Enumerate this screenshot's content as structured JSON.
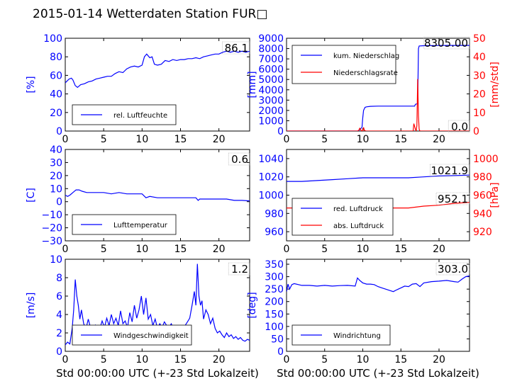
{
  "figure": {
    "title": "2015-01-14 Wetterdaten Station FUR□",
    "xlabel": "Std 00:00:00 UTC (+-23 Std Lokalzeit)",
    "colors": {
      "primary": "#0000ff",
      "secondary": "#ff0000",
      "secondary_light": "#8080ff"
    }
  },
  "chart_data": [
    {
      "id": "humidity",
      "type": "line",
      "ylabel": "[%]",
      "xlim": [
        0,
        24
      ],
      "ylim": [
        0,
        100
      ],
      "xticks": [
        0,
        5,
        10,
        15,
        20
      ],
      "yticks": [
        0,
        20,
        40,
        60,
        80,
        100
      ],
      "legend": {
        "placement": "lower-left",
        "entries": [
          "rel. Luftfeuchte"
        ]
      },
      "current_value": "86.1",
      "series": [
        {
          "name": "rel. Luftfeuchte",
          "color": "#0000ff",
          "x": [
            0,
            0.5,
            0.8,
            1,
            1.3,
            1.6,
            2,
            2.5,
            3,
            3.5,
            4,
            4.5,
            5,
            5.5,
            6,
            6.5,
            7,
            7.5,
            8,
            8.5,
            9,
            9.5,
            10,
            10.3,
            10.6,
            11,
            11.3,
            11.6,
            12,
            12.5,
            13,
            13.5,
            14,
            14.5,
            15,
            15.5,
            16,
            16.5,
            17,
            17.5,
            18,
            18.5,
            19,
            19.5,
            20,
            20.5,
            21,
            21.5,
            22,
            22.5,
            23,
            23.5,
            24
          ],
          "y": [
            52,
            56,
            57,
            55,
            49,
            47,
            50,
            51,
            53,
            54,
            56,
            57,
            58,
            59,
            59,
            62,
            64,
            63,
            67,
            69,
            70,
            69,
            71,
            80,
            83,
            79,
            80,
            72,
            71,
            72,
            76,
            75,
            77,
            76,
            77,
            77,
            78,
            78,
            79,
            78,
            80,
            81,
            82,
            83,
            83,
            85,
            86,
            85,
            86,
            85,
            86,
            85,
            86
          ]
        }
      ]
    },
    {
      "id": "precipitation",
      "type": "line",
      "ylabel": "[mm]",
      "y2label": "[mm/std]",
      "xlim": [
        0,
        24
      ],
      "ylim": [
        0,
        9000
      ],
      "y2lim": [
        0,
        50
      ],
      "xticks": [
        0,
        5,
        10,
        15,
        20
      ],
      "yticks": [
        0,
        1000,
        2000,
        3000,
        4000,
        5000,
        6000,
        7000,
        8000,
        9000
      ],
      "y2ticks": [
        0,
        10,
        20,
        30,
        40,
        50
      ],
      "legend": {
        "placement": "upper-left",
        "entries": [
          "kum. Niederschlag",
          "Niederschlagsrate"
        ]
      },
      "current_value_primary": "8305.00",
      "current_value_secondary": "0.0",
      "series": [
        {
          "name": "kum. Niederschlag",
          "axis": "left",
          "color": "#0000ff",
          "x": [
            0,
            9.4,
            9.6,
            9.9,
            10,
            10.1,
            10.3,
            10.5,
            11,
            12,
            13,
            14,
            15,
            16,
            16.8,
            16.9,
            17.2,
            17.3,
            17.4,
            18,
            20,
            22,
            24
          ],
          "y": [
            0,
            0,
            150,
            350,
            1300,
            2000,
            2300,
            2350,
            2400,
            2420,
            2420,
            2420,
            2420,
            2420,
            2420,
            2600,
            2650,
            8000,
            8250,
            8280,
            8300,
            8305,
            8305
          ]
        },
        {
          "name": "Niederschlagsrate",
          "axis": "right",
          "color": "#ff0000",
          "x": [
            0,
            9.3,
            9.5,
            9.6,
            9.8,
            10,
            10.1,
            10.2,
            10.4,
            10.5,
            16.4,
            16.6,
            16.7,
            16.9,
            17,
            17.1,
            17.2,
            17.3,
            17.4,
            17.5,
            18,
            24
          ],
          "y": [
            0,
            0,
            0.5,
            1.5,
            0.3,
            0,
            2,
            0.5,
            0,
            0,
            0,
            0,
            4,
            1,
            0,
            3,
            28,
            8,
            1,
            0,
            0,
            0
          ]
        }
      ]
    },
    {
      "id": "temperature",
      "type": "line",
      "ylabel": "[C]",
      "xlim": [
        0,
        24
      ],
      "ylim": [
        -30,
        40
      ],
      "xticks": [
        0,
        5,
        10,
        15,
        20
      ],
      "yticks": [
        -30,
        -20,
        -10,
        0,
        10,
        20,
        30,
        40
      ],
      "legend": {
        "placement": "lower-left",
        "entries": [
          "Lufttemperatur"
        ]
      },
      "current_value": "0.6",
      "series": [
        {
          "name": "Lufttemperatur",
          "color": "#0000ff",
          "x": [
            0,
            0.3,
            0.6,
            1,
            1.4,
            1.8,
            2.2,
            2.8,
            3.5,
            4,
            5,
            6,
            7,
            8,
            9,
            9.5,
            10,
            10.5,
            11,
            12,
            13,
            14,
            15,
            16,
            17,
            17.3,
            17.5,
            18,
            19,
            20,
            21,
            22,
            23,
            24
          ],
          "y": [
            5,
            4,
            5,
            7,
            9,
            9,
            8,
            7,
            7,
            7,
            7,
            6,
            7,
            6,
            6,
            6,
            6,
            3,
            4,
            3,
            3,
            3,
            3,
            3,
            3,
            1,
            2,
            2,
            2,
            2,
            2,
            1,
            1,
            0.6
          ]
        }
      ]
    },
    {
      "id": "pressure",
      "type": "line",
      "ylabel": "",
      "y2label": "[hPa]",
      "xlim": [
        0,
        24
      ],
      "ylim": [
        950,
        1050
      ],
      "y2lim": [
        910,
        1010
      ],
      "xticks": [
        0,
        5,
        10,
        15,
        20
      ],
      "yticks": [
        960,
        980,
        1000,
        1020,
        1040
      ],
      "y2ticks": [
        920,
        940,
        960,
        980,
        1000
      ],
      "legend": {
        "placement": "lower-left",
        "entries": [
          "red. Luftdruck",
          "abs. Luftdruck"
        ]
      },
      "current_value_primary": "1021.9",
      "current_value_secondary": "952.1",
      "series": [
        {
          "name": "red. Luftdruck",
          "axis": "left",
          "color": "#0000ff",
          "x": [
            0,
            2,
            4,
            6,
            8,
            10,
            12,
            14,
            16,
            18,
            20,
            22,
            24
          ],
          "y": [
            1015,
            1015,
            1016,
            1017,
            1018,
            1019,
            1019,
            1019,
            1019,
            1020,
            1021,
            1021.5,
            1021.9
          ]
        },
        {
          "name": "abs. Luftdruck",
          "axis": "right",
          "color": "#ff0000",
          "x": [
            0,
            2,
            4,
            6,
            8,
            10,
            12,
            14,
            16,
            18,
            20,
            22,
            24
          ],
          "y": [
            946,
            946,
            946,
            947,
            947,
            947.5,
            947,
            946,
            946,
            948,
            949,
            951,
            952.1
          ]
        }
      ]
    },
    {
      "id": "wind_speed",
      "type": "line",
      "ylabel": "[m/s]",
      "xlim": [
        0,
        24
      ],
      "ylim": [
        0,
        10
      ],
      "xticks": [
        0,
        5,
        10,
        15,
        20
      ],
      "yticks": [
        0,
        2,
        4,
        6,
        8,
        10
      ],
      "legend": {
        "placement": "lower-left",
        "entries": [
          "Windgeschwindigkeit"
        ]
      },
      "current_value": "1.2",
      "series": [
        {
          "name": "Windgeschwindigkeit",
          "color": "#0000ff",
          "x": [
            0,
            0.3,
            0.6,
            0.9,
            1.1,
            1.3,
            1.5,
            1.7,
            1.9,
            2.1,
            2.4,
            2.7,
            3,
            3.3,
            3.6,
            3.9,
            4.2,
            4.5,
            4.8,
            5.1,
            5.4,
            5.7,
            6,
            6.3,
            6.6,
            6.9,
            7.2,
            7.5,
            7.8,
            8.1,
            8.4,
            8.7,
            9,
            9.3,
            9.6,
            9.9,
            10.2,
            10.5,
            10.8,
            11.1,
            11.4,
            11.7,
            12,
            12.3,
            12.6,
            12.9,
            13.2,
            13.5,
            13.8,
            14.1,
            14.4,
            14.7,
            15,
            15.3,
            15.6,
            15.9,
            16.2,
            16.5,
            16.8,
            17,
            17.2,
            17.4,
            17.6,
            17.8,
            18,
            18.3,
            18.6,
            18.9,
            19.2,
            19.5,
            19.8,
            20.1,
            20.4,
            20.7,
            21,
            21.3,
            21.6,
            21.9,
            22.2,
            22.5,
            22.8,
            23.1,
            23.4,
            23.7,
            24
          ],
          "y": [
            0.7,
            1.0,
            0.8,
            2.5,
            4.5,
            7.8,
            6.0,
            5.0,
            3.5,
            4.5,
            3.0,
            2.5,
            3.5,
            2.5,
            2.0,
            2.8,
            1.8,
            2.5,
            3.3,
            2.6,
            3.6,
            2.8,
            4.0,
            3.0,
            3.6,
            2.8,
            4.4,
            3.0,
            3.3,
            2.6,
            4.2,
            3.2,
            5.0,
            3.6,
            4.5,
            6.0,
            4.0,
            5.8,
            3.5,
            4.0,
            2.8,
            3.5,
            2.5,
            3.0,
            2.6,
            3.2,
            2.8,
            2.6,
            3.0,
            2.4,
            2.6,
            2.2,
            2.5,
            2.3,
            2.8,
            3.2,
            3.6,
            5.0,
            6.5,
            5.0,
            9.5,
            6.0,
            5.0,
            5.5,
            3.5,
            4.5,
            4.0,
            3.0,
            3.6,
            2.5,
            2.0,
            2.2,
            1.8,
            1.5,
            2.0,
            1.6,
            1.8,
            1.4,
            1.6,
            1.3,
            1.5,
            1.2,
            1.1,
            1.3,
            1.2
          ]
        }
      ]
    },
    {
      "id": "wind_direction",
      "type": "line",
      "ylabel": "[deg]",
      "xlim": [
        0,
        24
      ],
      "ylim": [
        0,
        370
      ],
      "xticks": [
        0,
        5,
        10,
        15,
        20
      ],
      "yticks": [
        0,
        50,
        100,
        150,
        200,
        250,
        300,
        350
      ],
      "legend": {
        "placement": "lower-left",
        "entries": [
          "Windrichtung"
        ]
      },
      "current_value": "303.0",
      "series": [
        {
          "name": "Windrichtung",
          "color": "#0000ff",
          "x": [
            0,
            0.2,
            0.4,
            0.7,
            1,
            2,
            3,
            4,
            5,
            6,
            7,
            8,
            9,
            9.3,
            9.6,
            10,
            10.5,
            11,
            11.5,
            12,
            12.5,
            13,
            13.5,
            14,
            14.5,
            15,
            15.5,
            16,
            16.5,
            17,
            17.5,
            18,
            19,
            20,
            21,
            22,
            22.5,
            23,
            23.5,
            24
          ],
          "y": [
            240,
            270,
            250,
            268,
            272,
            265,
            265,
            262,
            265,
            262,
            264,
            265,
            262,
            295,
            285,
            275,
            270,
            270,
            268,
            260,
            255,
            250,
            245,
            240,
            248,
            255,
            262,
            260,
            270,
            272,
            260,
            275,
            280,
            282,
            285,
            280,
            278,
            290,
            300,
            303
          ]
        }
      ]
    }
  ]
}
